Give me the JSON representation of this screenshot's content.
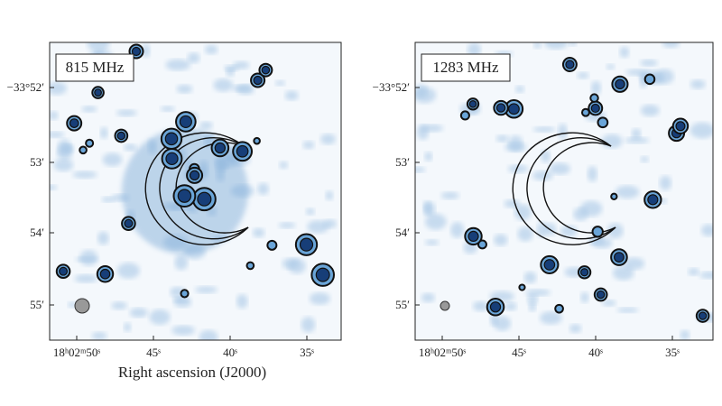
{
  "panels": [
    {
      "label": "815 MHz",
      "yticks": [
        "−33°52′",
        "53′",
        "54′",
        "55′"
      ],
      "xticks": [
        "18ʰ02ᵐ50ˢ",
        "45ˢ",
        "40ˢ",
        "35ˢ"
      ],
      "xlabel": "Right ascension (J2000)"
    },
    {
      "label": "1283 MHz",
      "yticks": [
        "−33°52′",
        "53′",
        "54′",
        "55′"
      ],
      "xticks": [
        "18ʰ02ᵐ50ˢ",
        "45ˢ",
        "40ˢ",
        "35ˢ"
      ]
    }
  ]
}
